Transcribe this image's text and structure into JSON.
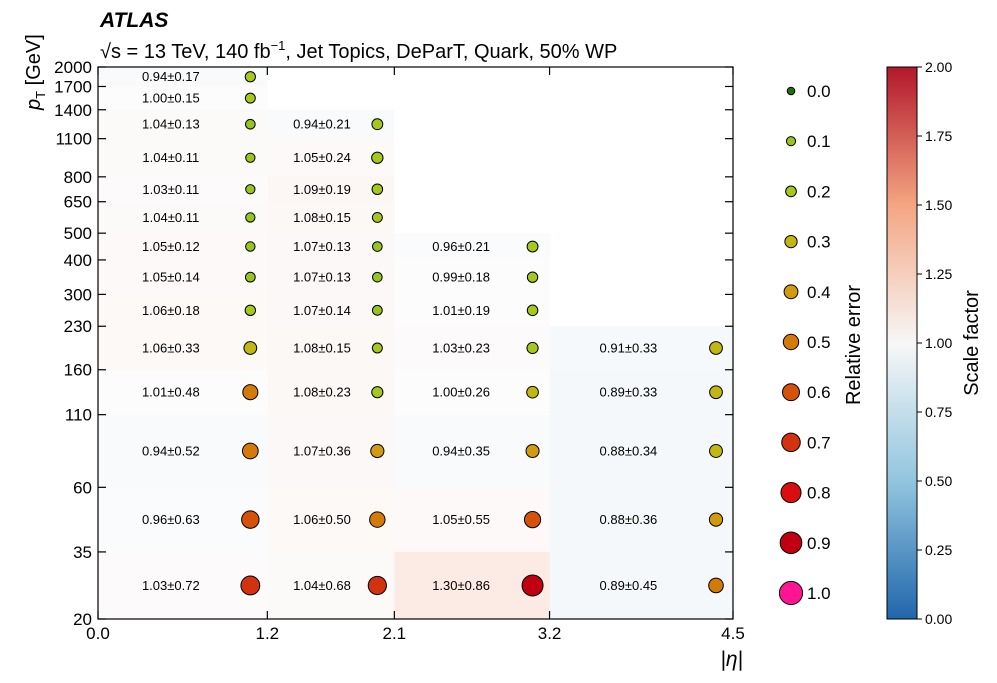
{
  "chart_data": {
    "type": "heatmap",
    "experiment": "ATLAS",
    "title_sqrt": "√s =",
    "title_rest": " 13 TeV, 140 fb",
    "title_sup": "−1",
    "title_tail": ", Jet Topics, DeParT, Quark, 50% WP",
    "xlabel": "|η|",
    "ylabel_main": "p",
    "ylabel_sub": "T",
    "ylabel_unit": " [GeV]",
    "x_edges": [
      0.0,
      1.2,
      2.1,
      3.2,
      4.5
    ],
    "x_tick_labels": [
      "0.0",
      "1.2",
      "2.1",
      "3.2",
      "4.5"
    ],
    "y_edges": [
      20,
      35,
      60,
      110,
      160,
      230,
      300,
      400,
      500,
      650,
      800,
      1100,
      1400,
      1700,
      2000
    ],
    "y_tick_labels": [
      "20",
      "35",
      "60",
      "110",
      "160",
      "230",
      "300",
      "400",
      "500",
      "650",
      "800",
      "1100",
      "1400",
      "1700",
      "2000"
    ],
    "y_scale": "log",
    "cells": [
      {
        "eta_bin": 0,
        "pt_bin": 0,
        "sf": 1.03,
        "err": 0.72,
        "label": "1.03±0.72"
      },
      {
        "eta_bin": 0,
        "pt_bin": 1,
        "sf": 0.96,
        "err": 0.63,
        "label": "0.96±0.63"
      },
      {
        "eta_bin": 0,
        "pt_bin": 2,
        "sf": 0.94,
        "err": 0.52,
        "label": "0.94±0.52"
      },
      {
        "eta_bin": 0,
        "pt_bin": 3,
        "sf": 1.01,
        "err": 0.48,
        "label": "1.01±0.48"
      },
      {
        "eta_bin": 0,
        "pt_bin": 4,
        "sf": 1.06,
        "err": 0.33,
        "label": "1.06±0.33"
      },
      {
        "eta_bin": 0,
        "pt_bin": 5,
        "sf": 1.06,
        "err": 0.18,
        "label": "1.06±0.18"
      },
      {
        "eta_bin": 0,
        "pt_bin": 6,
        "sf": 1.05,
        "err": 0.14,
        "label": "1.05±0.14"
      },
      {
        "eta_bin": 0,
        "pt_bin": 7,
        "sf": 1.05,
        "err": 0.12,
        "label": "1.05±0.12"
      },
      {
        "eta_bin": 0,
        "pt_bin": 8,
        "sf": 1.04,
        "err": 0.11,
        "label": "1.04±0.11"
      },
      {
        "eta_bin": 0,
        "pt_bin": 9,
        "sf": 1.03,
        "err": 0.11,
        "label": "1.03±0.11"
      },
      {
        "eta_bin": 0,
        "pt_bin": 10,
        "sf": 1.04,
        "err": 0.11,
        "label": "1.04±0.11"
      },
      {
        "eta_bin": 0,
        "pt_bin": 11,
        "sf": 1.04,
        "err": 0.13,
        "label": "1.04±0.13"
      },
      {
        "eta_bin": 0,
        "pt_bin": 12,
        "sf": 1.0,
        "err": 0.15,
        "label": "1.00±0.15"
      },
      {
        "eta_bin": 0,
        "pt_bin": 13,
        "sf": 0.94,
        "err": 0.17,
        "label": "0.94±0.17"
      },
      {
        "eta_bin": 1,
        "pt_bin": 0,
        "sf": 1.04,
        "err": 0.68,
        "label": "1.04±0.68"
      },
      {
        "eta_bin": 1,
        "pt_bin": 1,
        "sf": 1.06,
        "err": 0.5,
        "label": "1.06±0.50"
      },
      {
        "eta_bin": 1,
        "pt_bin": 2,
        "sf": 1.07,
        "err": 0.36,
        "label": "1.07±0.36"
      },
      {
        "eta_bin": 1,
        "pt_bin": 3,
        "sf": 1.08,
        "err": 0.23,
        "label": "1.08±0.23"
      },
      {
        "eta_bin": 1,
        "pt_bin": 4,
        "sf": 1.08,
        "err": 0.15,
        "label": "1.08±0.15"
      },
      {
        "eta_bin": 1,
        "pt_bin": 5,
        "sf": 1.07,
        "err": 0.14,
        "label": "1.07±0.14"
      },
      {
        "eta_bin": 1,
        "pt_bin": 6,
        "sf": 1.07,
        "err": 0.13,
        "label": "1.07±0.13"
      },
      {
        "eta_bin": 1,
        "pt_bin": 7,
        "sf": 1.07,
        "err": 0.13,
        "label": "1.07±0.13"
      },
      {
        "eta_bin": 1,
        "pt_bin": 8,
        "sf": 1.08,
        "err": 0.15,
        "label": "1.08±0.15"
      },
      {
        "eta_bin": 1,
        "pt_bin": 9,
        "sf": 1.09,
        "err": 0.19,
        "label": "1.09±0.19"
      },
      {
        "eta_bin": 1,
        "pt_bin": 10,
        "sf": 1.05,
        "err": 0.24,
        "label": "1.05±0.24"
      },
      {
        "eta_bin": 1,
        "pt_bin": 11,
        "sf": 0.94,
        "err": 0.21,
        "label": "0.94±0.21"
      },
      {
        "eta_bin": 2,
        "pt_bin": 0,
        "sf": 1.3,
        "err": 0.86,
        "label": "1.30±0.86"
      },
      {
        "eta_bin": 2,
        "pt_bin": 1,
        "sf": 1.05,
        "err": 0.55,
        "label": "1.05±0.55"
      },
      {
        "eta_bin": 2,
        "pt_bin": 2,
        "sf": 0.94,
        "err": 0.35,
        "label": "0.94±0.35"
      },
      {
        "eta_bin": 2,
        "pt_bin": 3,
        "sf": 1.0,
        "err": 0.26,
        "label": "1.00±0.26"
      },
      {
        "eta_bin": 2,
        "pt_bin": 4,
        "sf": 1.03,
        "err": 0.23,
        "label": "1.03±0.23"
      },
      {
        "eta_bin": 2,
        "pt_bin": 5,
        "sf": 1.01,
        "err": 0.19,
        "label": "1.01±0.19"
      },
      {
        "eta_bin": 2,
        "pt_bin": 6,
        "sf": 0.99,
        "err": 0.18,
        "label": "0.99±0.18"
      },
      {
        "eta_bin": 2,
        "pt_bin": 7,
        "sf": 0.96,
        "err": 0.21,
        "label": "0.96±0.21"
      },
      {
        "eta_bin": 3,
        "pt_bin": 0,
        "sf": 0.89,
        "err": 0.45,
        "label": "0.89±0.45"
      },
      {
        "eta_bin": 3,
        "pt_bin": 1,
        "sf": 0.88,
        "err": 0.36,
        "label": "0.88±0.36"
      },
      {
        "eta_bin": 3,
        "pt_bin": 2,
        "sf": 0.88,
        "err": 0.34,
        "label": "0.88±0.34"
      },
      {
        "eta_bin": 3,
        "pt_bin": 3,
        "sf": 0.89,
        "err": 0.33,
        "label": "0.89±0.33"
      },
      {
        "eta_bin": 3,
        "pt_bin": 4,
        "sf": 0.91,
        "err": 0.33,
        "label": "0.91±0.33"
      }
    ],
    "size_legend": {
      "title": "Relative error",
      "entries": [
        {
          "value": 0.0,
          "label": "0.0"
        },
        {
          "value": 0.1,
          "label": "0.1"
        },
        {
          "value": 0.2,
          "label": "0.2"
        },
        {
          "value": 0.3,
          "label": "0.3"
        },
        {
          "value": 0.4,
          "label": "0.4"
        },
        {
          "value": 0.5,
          "label": "0.5"
        },
        {
          "value": 0.6,
          "label": "0.6"
        },
        {
          "value": 0.7,
          "label": "0.7"
        },
        {
          "value": 0.8,
          "label": "0.8"
        },
        {
          "value": 0.9,
          "label": "0.9"
        },
        {
          "value": 1.0,
          "label": "1.0"
        }
      ]
    },
    "error_colors": [
      "#1f6e12",
      "#96c61d",
      "#a6c81c",
      "#c2b615",
      "#d19a11",
      "#d47a0b",
      "#d4520a",
      "#d33210",
      "#d90f0f",
      "#c00010",
      "#ff1493"
    ],
    "colorbar": {
      "title": "Scale factor",
      "min": 0.0,
      "max": 2.0,
      "ticks": [
        {
          "value": 0.0,
          "label": "0.00"
        },
        {
          "value": 0.25,
          "label": "0.25"
        },
        {
          "value": 0.5,
          "label": "0.50"
        },
        {
          "value": 0.75,
          "label": "0.75"
        },
        {
          "value": 1.0,
          "label": "1.00"
        },
        {
          "value": 1.25,
          "label": "1.25"
        },
        {
          "value": 1.5,
          "label": "1.50"
        },
        {
          "value": 1.75,
          "label": "1.75"
        },
        {
          "value": 2.0,
          "label": "2.00"
        }
      ],
      "colormap": [
        "#2166ac",
        "#92c5de",
        "#f7f7f7",
        "#f4a582",
        "#b2182b"
      ]
    }
  }
}
